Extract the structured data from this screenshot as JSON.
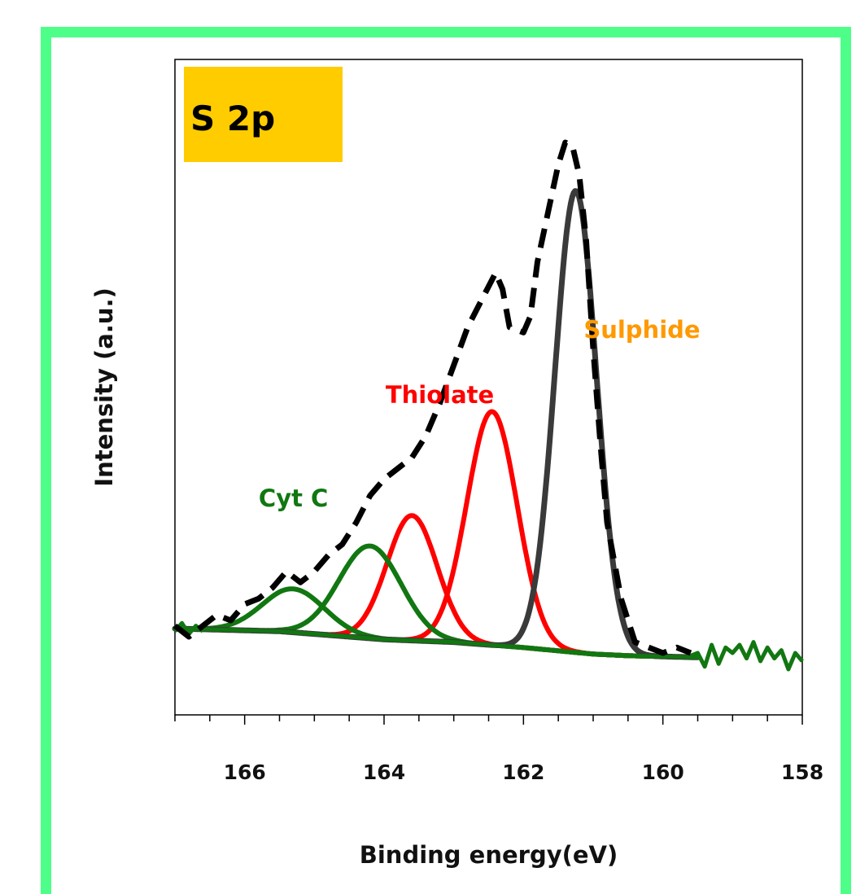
{
  "chart_data": {
    "type": "line",
    "panel_label": "S 2p",
    "xlabel": "Binding energy(eV)",
    "ylabel": "Intensity (a.u.)",
    "x_axis_reversed": true,
    "xlim": [
      167,
      158
    ],
    "ylim": [
      0,
      1
    ],
    "x_ticks": [
      166,
      164,
      162,
      160,
      158
    ],
    "x_minor_step": 0.5,
    "y_ticks_shown": false,
    "colors": {
      "data": "#000000",
      "envelope": "#3a3a3a",
      "thiolate": "#ff0000",
      "cytc": "#117711",
      "sulphide_label": "#ff9900",
      "panel_label_bg": "#ffcc00"
    },
    "annotations": [
      {
        "text": "Sulphide",
        "color": "#ff9900",
        "x": 160.3,
        "y": 0.64
      },
      {
        "text": "Thiolate",
        "color": "#ff0000",
        "x": 163.2,
        "y": 0.52
      },
      {
        "text": "Cyt C",
        "color": "#117711",
        "x": 165.3,
        "y": 0.33
      }
    ],
    "baseline": {
      "x": [
        167,
        165.5,
        164,
        163,
        162,
        161,
        160.5,
        159.5
      ],
      "y": [
        0.105,
        0.1,
        0.085,
        0.08,
        0.07,
        0.058,
        0.055,
        0.052
      ]
    },
    "series": [
      {
        "style": "dashed",
        "color": "#000000",
        "x": [
          167.0,
          166.8,
          166.6,
          166.4,
          166.2,
          166.0,
          165.8,
          165.6,
          165.4,
          165.2,
          165.0,
          164.8,
          164.6,
          164.4,
          164.2,
          164.0,
          163.8,
          163.6,
          163.4,
          163.2,
          163.0,
          162.8,
          162.6,
          162.4,
          162.3,
          162.2,
          162.0,
          161.9,
          161.8,
          161.6,
          161.5,
          161.4,
          161.3,
          161.2,
          161.1,
          161.0,
          160.9,
          160.8,
          160.6,
          160.4,
          160.2,
          160.0,
          159.8,
          159.6
        ],
        "y": [
          0.11,
          0.09,
          0.11,
          0.13,
          0.12,
          0.15,
          0.16,
          0.18,
          0.21,
          0.19,
          0.21,
          0.24,
          0.26,
          0.3,
          0.35,
          0.38,
          0.4,
          0.42,
          0.46,
          0.52,
          0.59,
          0.66,
          0.71,
          0.76,
          0.73,
          0.66,
          0.65,
          0.68,
          0.78,
          0.9,
          0.96,
          1.0,
          0.995,
          0.94,
          0.82,
          0.62,
          0.45,
          0.3,
          0.16,
          0.08,
          0.07,
          0.06,
          0.07,
          0.06
        ]
      },
      {
        "type": "envelope",
        "color": "#3a3a3a",
        "center": 161.25,
        "amp": 0.85,
        "fwhm": 0.7,
        "x_range": [
          167,
          159.5
        ]
      },
      {
        "type": "peak",
        "color": "#ff0000",
        "center": 162.45,
        "amp": 0.43,
        "fwhm": 0.85
      },
      {
        "type": "peak",
        "color": "#ff0000",
        "center": 163.6,
        "amp": 0.23,
        "fwhm": 0.85
      },
      {
        "type": "peak",
        "color": "#117711",
        "center": 164.2,
        "amp": 0.17,
        "fwhm": 1.05
      },
      {
        "type": "peak",
        "color": "#117711",
        "center": 165.3,
        "amp": 0.08,
        "fwhm": 1.05
      },
      {
        "type": "noise_trace",
        "color": "#117711",
        "x": [
          167.0,
          166.9,
          166.8,
          166.7,
          166.6,
          159.6,
          159.5,
          159.4,
          159.3,
          159.2,
          159.1,
          159.0,
          158.9,
          158.8,
          158.7,
          158.6,
          158.5,
          158.4,
          158.3,
          158.2,
          158.1,
          158.0
        ],
        "y": [
          0.1,
          0.115,
          0.095,
          0.11,
          0.1,
          0.055,
          0.06,
          0.035,
          0.075,
          0.04,
          0.07,
          0.06,
          0.075,
          0.05,
          0.08,
          0.045,
          0.07,
          0.05,
          0.065,
          0.03,
          0.06,
          0.045
        ]
      }
    ]
  }
}
